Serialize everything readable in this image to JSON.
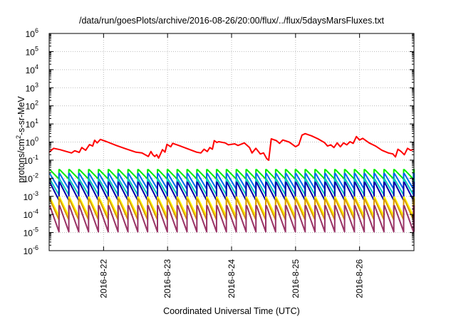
{
  "chart_data": {
    "type": "line",
    "title": "/data/run/goesPlots/archive/2016-08-26/20:00/flux/../flux/5daysMarsFluxes.txt",
    "xlabel": "Coordinated Universal Time (UTC)",
    "ylabel_base": "protons/cm",
    "ylabel_sup": "2",
    "ylabel_rest": "-s-sr-MeV",
    "y_scale": "log",
    "ylim": [
      1e-06,
      1000000.0
    ],
    "xlim": [
      21.15,
      26.85
    ],
    "x_unit": "day of 2016-08",
    "grid": true,
    "legend": "none",
    "y_ticks": [
      {
        "value": -6,
        "base": "10",
        "exp": "-6"
      },
      {
        "value": -5,
        "base": "10",
        "exp": "-5"
      },
      {
        "value": -4,
        "base": "10",
        "exp": "-4"
      },
      {
        "value": -3,
        "base": "10",
        "exp": "-3"
      },
      {
        "value": -2,
        "base": "10",
        "exp": "-2"
      },
      {
        "value": -1,
        "base": "10",
        "exp": "-1"
      },
      {
        "value": 0,
        "base": "10",
        "exp": "0"
      },
      {
        "value": 1,
        "base": "10",
        "exp": "1"
      },
      {
        "value": 2,
        "base": "10",
        "exp": "2"
      },
      {
        "value": 3,
        "base": "10",
        "exp": "3"
      },
      {
        "value": 4,
        "base": "10",
        "exp": "4"
      },
      {
        "value": 5,
        "base": "10",
        "exp": "5"
      },
      {
        "value": 6,
        "base": "10",
        "exp": "6"
      }
    ],
    "x_ticks": [
      {
        "value": 22,
        "label": "2016-8-22"
      },
      {
        "value": 23,
        "label": "2016-8-23"
      },
      {
        "value": 24,
        "label": "2016-8-24"
      },
      {
        "value": 25,
        "label": "2016-8-25"
      },
      {
        "value": 26,
        "label": "2016-8-26"
      }
    ],
    "series": [
      {
        "color": "#ff0000",
        "points": [
          [
            21.15,
            0.28
          ],
          [
            21.22,
            0.45
          ],
          [
            21.32,
            0.38
          ],
          [
            21.42,
            0.3
          ],
          [
            21.5,
            0.25
          ],
          [
            21.55,
            0.33
          ],
          [
            21.62,
            0.27
          ],
          [
            21.66,
            0.5
          ],
          [
            21.72,
            0.35
          ],
          [
            21.78,
            0.72
          ],
          [
            21.83,
            0.6
          ],
          [
            21.86,
            1.25
          ],
          [
            21.9,
            0.9
          ],
          [
            21.95,
            1.4
          ],
          [
            22.05,
            1.05
          ],
          [
            22.2,
            0.65
          ],
          [
            22.35,
            0.42
          ],
          [
            22.5,
            0.28
          ],
          [
            22.6,
            0.25
          ],
          [
            22.65,
            0.2
          ],
          [
            22.7,
            0.16
          ],
          [
            22.74,
            0.3
          ],
          [
            22.77,
            0.2
          ],
          [
            22.8,
            0.16
          ],
          [
            22.83,
            0.2
          ],
          [
            22.86,
            0.13
          ],
          [
            22.92,
            0.38
          ],
          [
            22.96,
            0.28
          ],
          [
            22.99,
            0.75
          ],
          [
            23.05,
            0.55
          ],
          [
            23.08,
            0.85
          ],
          [
            23.2,
            0.6
          ],
          [
            23.35,
            0.38
          ],
          [
            23.45,
            0.28
          ],
          [
            23.52,
            0.25
          ],
          [
            23.57,
            0.4
          ],
          [
            23.62,
            0.3
          ],
          [
            23.66,
            0.5
          ],
          [
            23.7,
            0.4
          ],
          [
            23.73,
            1.2
          ],
          [
            23.77,
            0.95
          ],
          [
            23.8,
            1.05
          ],
          [
            23.9,
            0.9
          ],
          [
            23.95,
            0.7
          ],
          [
            24.05,
            0.8
          ],
          [
            24.1,
            0.65
          ],
          [
            24.2,
            0.9
          ],
          [
            24.28,
            0.5
          ],
          [
            24.32,
            0.25
          ],
          [
            24.38,
            0.45
          ],
          [
            24.45,
            0.22
          ],
          [
            24.5,
            0.25
          ],
          [
            24.55,
            0.12
          ],
          [
            24.58,
            0.1
          ],
          [
            24.62,
            1.5
          ],
          [
            24.7,
            1.2
          ],
          [
            24.75,
            0.85
          ],
          [
            24.8,
            1.3
          ],
          [
            24.9,
            1.0
          ],
          [
            24.95,
            0.75
          ],
          [
            25.0,
            0.55
          ],
          [
            25.05,
            0.7
          ],
          [
            25.1,
            2.4
          ],
          [
            25.15,
            2.9
          ],
          [
            25.25,
            2.2
          ],
          [
            25.35,
            1.5
          ],
          [
            25.45,
            0.95
          ],
          [
            25.5,
            0.6
          ],
          [
            25.55,
            0.7
          ],
          [
            25.6,
            0.5
          ],
          [
            25.65,
            0.9
          ],
          [
            25.7,
            0.55
          ],
          [
            25.75,
            0.9
          ],
          [
            25.8,
            0.7
          ],
          [
            25.85,
            1.05
          ],
          [
            25.9,
            0.85
          ],
          [
            25.95,
            2.0
          ],
          [
            26.0,
            1.3
          ],
          [
            26.05,
            1.6
          ],
          [
            26.15,
            0.9
          ],
          [
            26.25,
            0.6
          ],
          [
            26.35,
            0.35
          ],
          [
            26.45,
            0.25
          ],
          [
            26.52,
            0.22
          ],
          [
            26.56,
            0.15
          ],
          [
            26.6,
            0.4
          ],
          [
            26.65,
            0.3
          ],
          [
            26.7,
            0.2
          ],
          [
            26.75,
            0.45
          ],
          [
            26.8,
            0.35
          ],
          [
            26.85,
            0.4
          ]
        ]
      },
      {
        "color": "#00ee00",
        "sawtooth": {
          "low": 0.009,
          "high": 0.03
        }
      },
      {
        "color": "#0066ee",
        "sawtooth": {
          "low": 0.0025,
          "high": 0.018
        }
      },
      {
        "color": "#00ccbb",
        "sawtooth": {
          "low": 0.0012,
          "high": 0.009
        }
      },
      {
        "color": "#0000aa",
        "sawtooth": {
          "low": 0.0006,
          "high": 0.006
        }
      },
      {
        "color": "#ffff00",
        "sawtooth": {
          "low": 8e-05,
          "high": 0.0009
        }
      },
      {
        "color": "#dd9900",
        "sawtooth": {
          "low": 5e-05,
          "high": 0.0007
        }
      },
      {
        "color": "#993366",
        "sawtooth": {
          "low": 1.1e-05,
          "high": 0.0003
        }
      }
    ]
  }
}
